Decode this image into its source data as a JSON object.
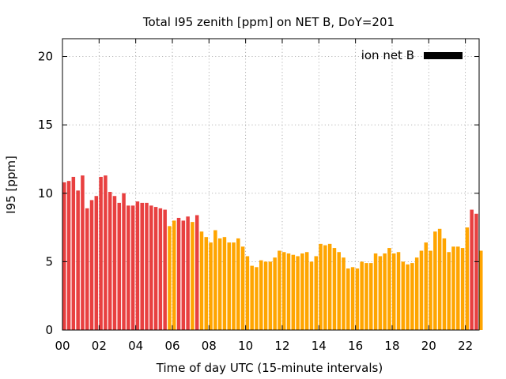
{
  "chart_data": {
    "type": "bar",
    "title": "Total I95 zenith [ppm] on NET B, DoY=201",
    "xlabel": "Time of day UTC (15-minute intervals)",
    "ylabel": "I95 [ppm]",
    "xlim": [
      0,
      22.75
    ],
    "ylim": [
      0,
      21.3
    ],
    "grid": true,
    "legend": {
      "position": "top-right",
      "entries": [
        {
          "label": "ion net B",
          "color": "#000000"
        }
      ]
    },
    "x_tick_labels": [
      "00",
      "02",
      "04",
      "06",
      "08",
      "10",
      "12",
      "14",
      "16",
      "18",
      "20",
      "22"
    ],
    "x_tick_values": [
      0,
      2,
      4,
      6,
      8,
      10,
      12,
      14,
      16,
      18,
      20,
      22
    ],
    "y_tick_labels": [
      "0",
      "5",
      "10",
      "15",
      "20"
    ],
    "y_tick_values": [
      0,
      5,
      10,
      15,
      20
    ],
    "bar_interval_hours": 0.25,
    "bar_start_hours": 0,
    "colors": {
      "red": "#e84040",
      "orange": "#ffa500"
    },
    "series": [
      {
        "values": [
          10.8,
          10.9,
          11.2,
          10.2,
          11.3,
          8.9,
          9.5,
          9.8,
          11.2,
          11.3,
          10.1,
          9.8,
          9.3,
          10.0,
          9.1,
          9.1,
          9.4,
          9.3,
          9.3,
          9.1,
          9.0,
          8.9,
          8.8,
          7.6,
          8.0,
          8.2,
          8.0,
          8.3,
          7.9,
          8.4,
          7.2,
          6.8,
          6.4,
          7.3,
          6.7,
          6.8,
          6.4,
          6.4,
          6.7,
          6.1,
          5.4,
          4.7,
          4.6,
          5.1,
          5.0,
          5.0,
          5.3,
          5.8,
          5.7,
          5.6,
          5.5,
          5.4,
          5.6,
          5.7,
          5.0,
          5.4,
          6.3,
          6.2,
          6.3,
          6.0,
          5.7,
          5.3,
          4.5,
          4.6,
          4.5,
          5.0,
          4.9,
          4.9,
          5.6,
          5.4,
          5.6,
          6.0,
          5.6,
          5.7,
          5.0,
          4.8,
          4.9,
          5.3,
          5.8,
          6.4,
          5.8,
          7.2,
          7.4,
          6.7,
          5.7,
          6.1,
          6.1,
          6.0,
          7.5,
          8.8,
          8.5,
          5.8
        ],
        "colors": [
          "red",
          "red",
          "red",
          "red",
          "red",
          "red",
          "red",
          "red",
          "red",
          "red",
          "red",
          "red",
          "red",
          "red",
          "red",
          "red",
          "red",
          "red",
          "red",
          "red",
          "red",
          "red",
          "red",
          "orange",
          "orange",
          "red",
          "red",
          "red",
          "orange",
          "red",
          "orange",
          "orange",
          "orange",
          "orange",
          "orange",
          "orange",
          "orange",
          "orange",
          "orange",
          "orange",
          "orange",
          "orange",
          "orange",
          "orange",
          "orange",
          "orange",
          "orange",
          "orange",
          "orange",
          "orange",
          "orange",
          "orange",
          "orange",
          "orange",
          "orange",
          "orange",
          "orange",
          "orange",
          "orange",
          "orange",
          "orange",
          "orange",
          "orange",
          "orange",
          "orange",
          "orange",
          "orange",
          "orange",
          "orange",
          "orange",
          "orange",
          "orange",
          "orange",
          "orange",
          "orange",
          "orange",
          "orange",
          "orange",
          "orange",
          "orange",
          "orange",
          "orange",
          "orange",
          "orange",
          "orange",
          "orange",
          "orange",
          "orange",
          "orange",
          "red",
          "red",
          "orange"
        ]
      }
    ]
  }
}
